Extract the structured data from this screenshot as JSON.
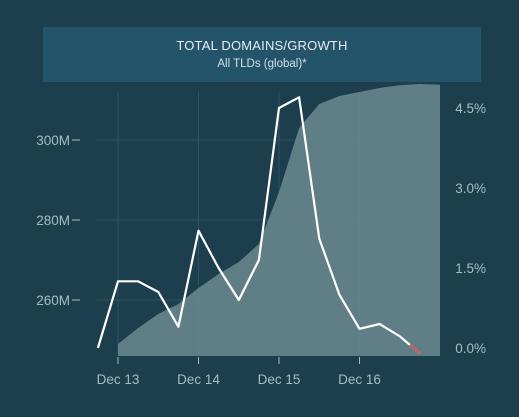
{
  "chart_data": {
    "type": "line",
    "title": "TOTAL DOMAINS/GROWTH",
    "subtitle": "All TLDs (global)*",
    "x_tick_labels": [
      "Dec 13",
      "Dec 14",
      "Dec 15",
      "Dec 16"
    ],
    "y_left": {
      "ticks": [
        260,
        280,
        300
      ],
      "tick_labels": [
        "260M",
        "280M",
        "300M"
      ],
      "range": [
        246,
        312
      ]
    },
    "y_right": {
      "ticks": [
        0,
        1.5,
        3,
        4.5
      ],
      "tick_labels": [
        "0.0%",
        "1.5%",
        "3.0%",
        "4.5%"
      ],
      "range": [
        -0.15,
        4.8
      ]
    },
    "grid": true,
    "series": [
      {
        "kind": "area",
        "axis": "left",
        "color": "#6e8c94",
        "x": [
          0,
          0.25,
          0.5,
          0.75,
          1,
          1.25,
          1.5,
          1.75,
          2,
          2.25,
          2.5,
          2.75,
          3,
          3.25,
          3.5,
          3.75,
          4.0
        ],
        "values": [
          249,
          253,
          256.5,
          259,
          263,
          266.5,
          269.5,
          274,
          287,
          303,
          309,
          311,
          312,
          313,
          313.7,
          314,
          313.8
        ]
      },
      {
        "kind": "line",
        "axis": "right",
        "color": "#ffffff",
        "x": [
          -0.25,
          0,
          0.25,
          0.5,
          0.75,
          1,
          1.25,
          1.5,
          1.75,
          2,
          2.25,
          2.5,
          2.75,
          3,
          3.25,
          3.5,
          3.75
        ],
        "values": [
          0.0,
          1.25,
          1.25,
          1.05,
          0.4,
          2.2,
          1.5,
          0.9,
          1.65,
          4.5,
          4.7,
          2.05,
          1.0,
          0.36,
          0.45,
          0.22,
          -0.1
        ]
      }
    ]
  }
}
